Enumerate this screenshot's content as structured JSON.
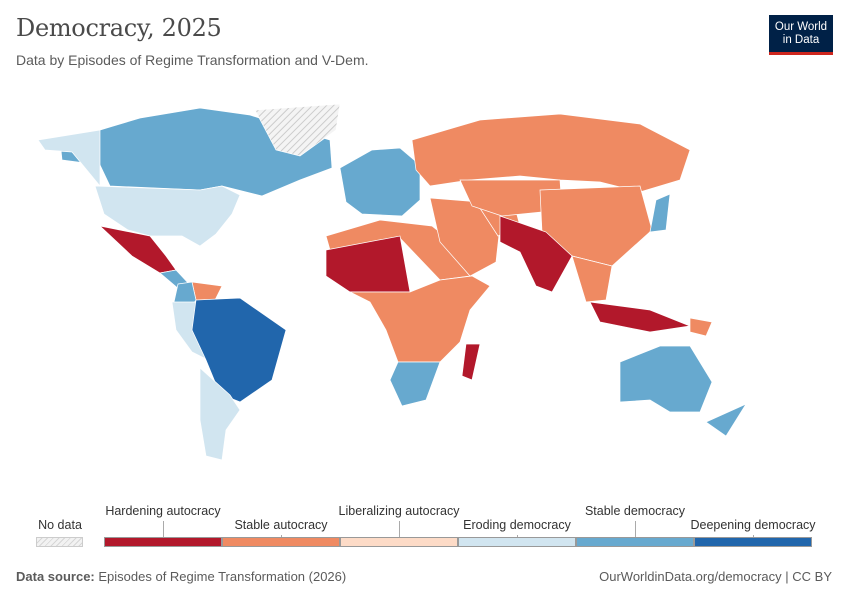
{
  "header": {
    "title": "Democracy, 2025",
    "subtitle": "Data by Episodes of Regime Transformation and V-Dem.",
    "logo_line1": "Our World",
    "logo_line2": "in Data"
  },
  "legend": {
    "no_data": {
      "label": "No data",
      "color": "#e0e0e0"
    },
    "categories": [
      {
        "label": "Hardening autocracy",
        "color": "#b2182b"
      },
      {
        "label": "Stable autocracy",
        "color": "#ef8a62"
      },
      {
        "label": "Liberalizing autocracy",
        "color": "#fddbc7"
      },
      {
        "label": "Eroding democracy",
        "color": "#d1e5f0"
      },
      {
        "label": "Stable democracy",
        "color": "#67a9cf"
      },
      {
        "label": "Deepening democracy",
        "color": "#2166ac"
      }
    ]
  },
  "map_regions": {
    "Canada": "Stable democracy",
    "Alaska": "Eroding democracy",
    "United States": "Eroding democracy",
    "Greenland": "No data",
    "Mexico": "Hardening autocracy",
    "Central America": "Stable democracy",
    "Venezuela": "Stable autocracy",
    "Colombia": "Stable democracy",
    "Andes": "Eroding democracy",
    "Brazil": "Deepening democracy",
    "Southern Cone": "Eroding democracy",
    "Europe": "Stable democracy",
    "Russia": "Stable autocracy",
    "North Africa": "Stable autocracy",
    "Sahel": "Hardening autocracy",
    "Central Africa": "Stable autocracy",
    "Southern Africa": "Stable democracy",
    "Madagascar": "Hardening autocracy",
    "Middle East": "Stable autocracy",
    "Iran": "Stable autocracy",
    "Central Asia": "Stable autocracy",
    "China": "Stable autocracy",
    "South Asia": "Hardening autocracy",
    "Southeast Asia": "Stable autocracy",
    "Indonesia": "Hardening autocracy",
    "Australia": "Stable democracy",
    "Japan": "Stable democracy",
    "New Zealand": "Stable democracy",
    "Papua New Guinea": "Stable autocracy"
  },
  "footer": {
    "source_label": "Data source:",
    "source": "Episodes of Regime Transformation (2026)",
    "url": "OurWorldinData.org/democracy | CC BY"
  }
}
